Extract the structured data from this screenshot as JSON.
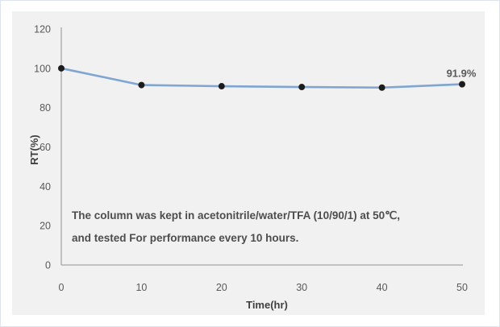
{
  "page": {
    "background": "#ffffff",
    "border_color": "#dde4ee",
    "plot_background": "#f1f1f1"
  },
  "chart_data": {
    "type": "line",
    "x": [
      0,
      10,
      20,
      30,
      40,
      50
    ],
    "series": [
      {
        "name": "RT",
        "values": [
          100,
          91.5,
          90.9,
          90.5,
          90.2,
          91.9
        ]
      }
    ],
    "title": "",
    "xlabel": "Time(hr)",
    "ylabel": "RT(%)",
    "xlim": [
      0,
      50
    ],
    "ylim": [
      0,
      120
    ],
    "x_ticks": [
      "0",
      "10",
      "20",
      "30",
      "40",
      "50"
    ],
    "y_ticks": [
      "0",
      "20",
      "40",
      "60",
      "80",
      "100",
      "120"
    ],
    "grid": false,
    "legend": "none",
    "axis_color": "#a6a6a6",
    "tick_color": "#595959",
    "line_color": "#7fa5d0",
    "marker_color": "#1c1c1c",
    "last_point_label": "91.9%",
    "annotation": {
      "line1": "The column was kept in acetonitrile/water/TFA (10/90/1) at 50℃,",
      "line2": "and tested For performance every 10 hours."
    }
  }
}
